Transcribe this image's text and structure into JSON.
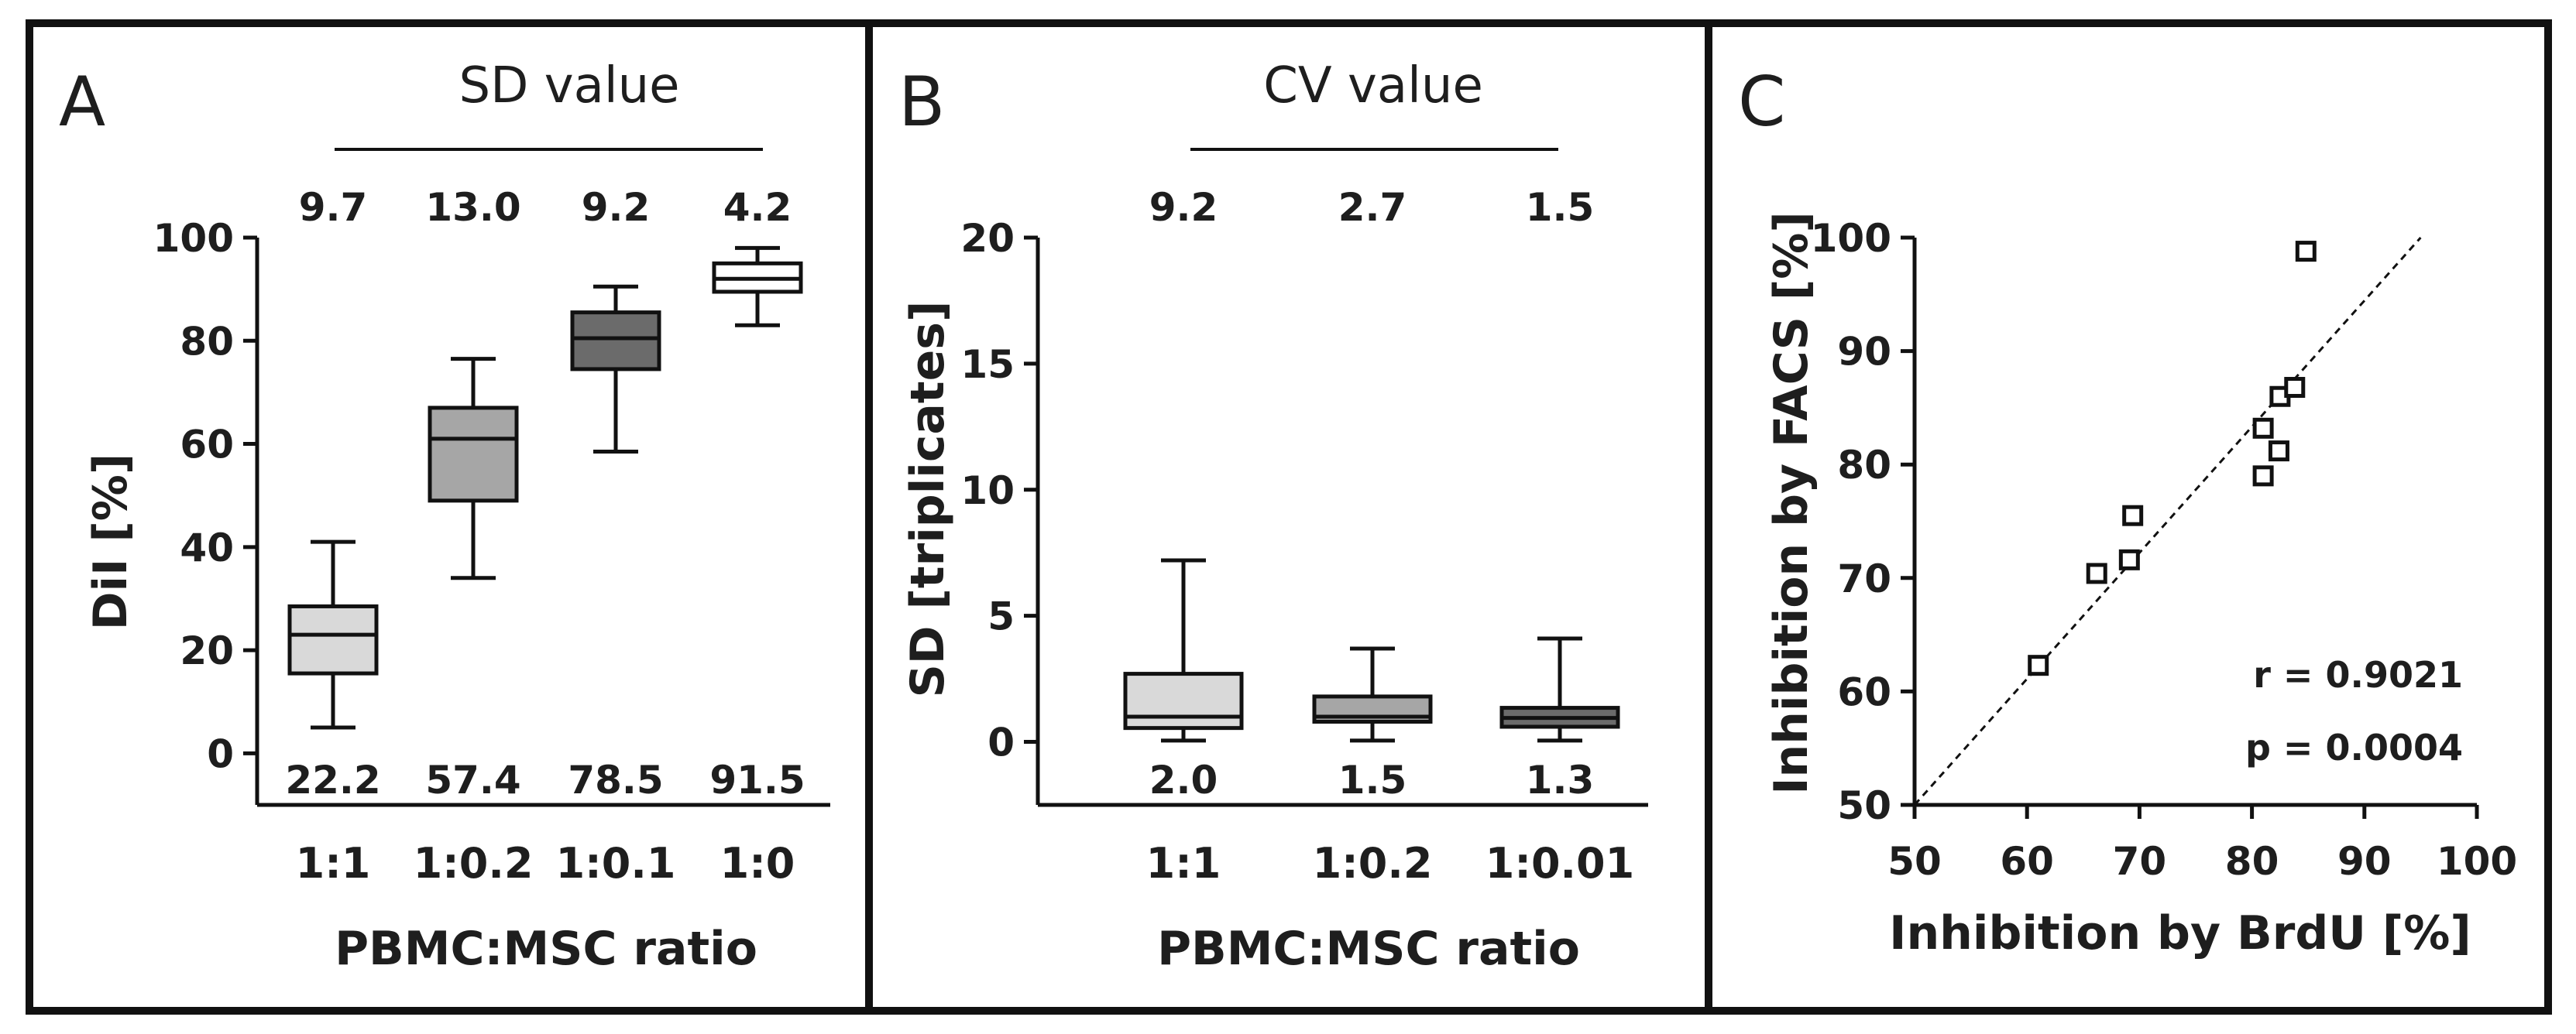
{
  "colors": {
    "light": "#d9d9d9",
    "mid": "#a6a6a6",
    "dark": "#6b6b6b",
    "white": "#ffffff"
  },
  "chart_data": [
    {
      "panel": "A",
      "type": "boxplot",
      "xlabel": "PBMC:MSC ratio",
      "ylabel": "DiI [%]",
      "ylim": [
        -10,
        100
      ],
      "yticks": [
        0,
        20,
        40,
        60,
        80,
        100
      ],
      "header": "SD value",
      "categories": [
        "1:1",
        "1:0.2",
        "1:0.1",
        "1:0"
      ],
      "top_labels": [
        "9.7",
        "13.0",
        "9.2",
        "4.2"
      ],
      "bottom_labels": [
        "22.2",
        "57.4",
        "78.5",
        "91.5"
      ],
      "boxes": [
        {
          "min": 5,
          "q1": 15.5,
          "median": 23,
          "q3": 28.5,
          "max": 41,
          "fill": "light"
        },
        {
          "min": 34,
          "q1": 49,
          "median": 61,
          "q3": 67,
          "max": 76.5,
          "fill": "mid"
        },
        {
          "min": 58.5,
          "q1": 74.5,
          "median": 80.5,
          "q3": 85.5,
          "max": 90.5,
          "fill": "dark"
        },
        {
          "min": 83,
          "q1": 89.5,
          "median": 92,
          "q3": 95,
          "max": 98,
          "fill": "white"
        }
      ]
    },
    {
      "panel": "B",
      "type": "boxplot",
      "xlabel": "PBMC:MSC ratio",
      "ylabel": "SD [triplicates]",
      "ylim": [
        -2.5,
        20
      ],
      "yticks": [
        0,
        5,
        10,
        15,
        20
      ],
      "header": "CV value",
      "categories": [
        "1:1",
        "1:0.2",
        "1:0.01"
      ],
      "top_labels": [
        "9.2",
        "2.7",
        "1.5"
      ],
      "bottom_labels": [
        "2.0",
        "1.5",
        "1.3"
      ],
      "boxes": [
        {
          "min": 0.05,
          "q1": 0.55,
          "median": 1.0,
          "q3": 2.7,
          "max": 7.2,
          "fill": "light"
        },
        {
          "min": 0.05,
          "q1": 0.8,
          "median": 1.0,
          "q3": 1.8,
          "max": 3.7,
          "fill": "mid"
        },
        {
          "min": 0.05,
          "q1": 0.6,
          "median": 0.95,
          "q3": 1.35,
          "max": 4.1,
          "fill": "dark"
        }
      ]
    },
    {
      "panel": "C",
      "type": "scatter",
      "xlabel": "Inhibition by BrdU [%]",
      "ylabel": "Inhibition by FACS [%]",
      "xlim": [
        50,
        100
      ],
      "ylim": [
        50,
        100
      ],
      "xticks": [
        50,
        60,
        70,
        80,
        90,
        100
      ],
      "yticks": [
        50,
        60,
        70,
        80,
        90,
        100
      ],
      "points": [
        {
          "x": 61,
          "y": 62.3
        },
        {
          "x": 66.2,
          "y": 70.4
        },
        {
          "x": 69.1,
          "y": 71.6
        },
        {
          "x": 69.4,
          "y": 75.5
        },
        {
          "x": 81,
          "y": 79
        },
        {
          "x": 81,
          "y": 83.2
        },
        {
          "x": 82.4,
          "y": 81.2
        },
        {
          "x": 82.5,
          "y": 86
        },
        {
          "x": 83.8,
          "y": 86.8
        },
        {
          "x": 84.8,
          "y": 98.8
        }
      ],
      "fit_line": {
        "x1": 50,
        "y1": 50,
        "x2": 95,
        "y2": 100
      },
      "annotations": [
        "r = 0.9021",
        "p = 0.0004"
      ]
    }
  ]
}
